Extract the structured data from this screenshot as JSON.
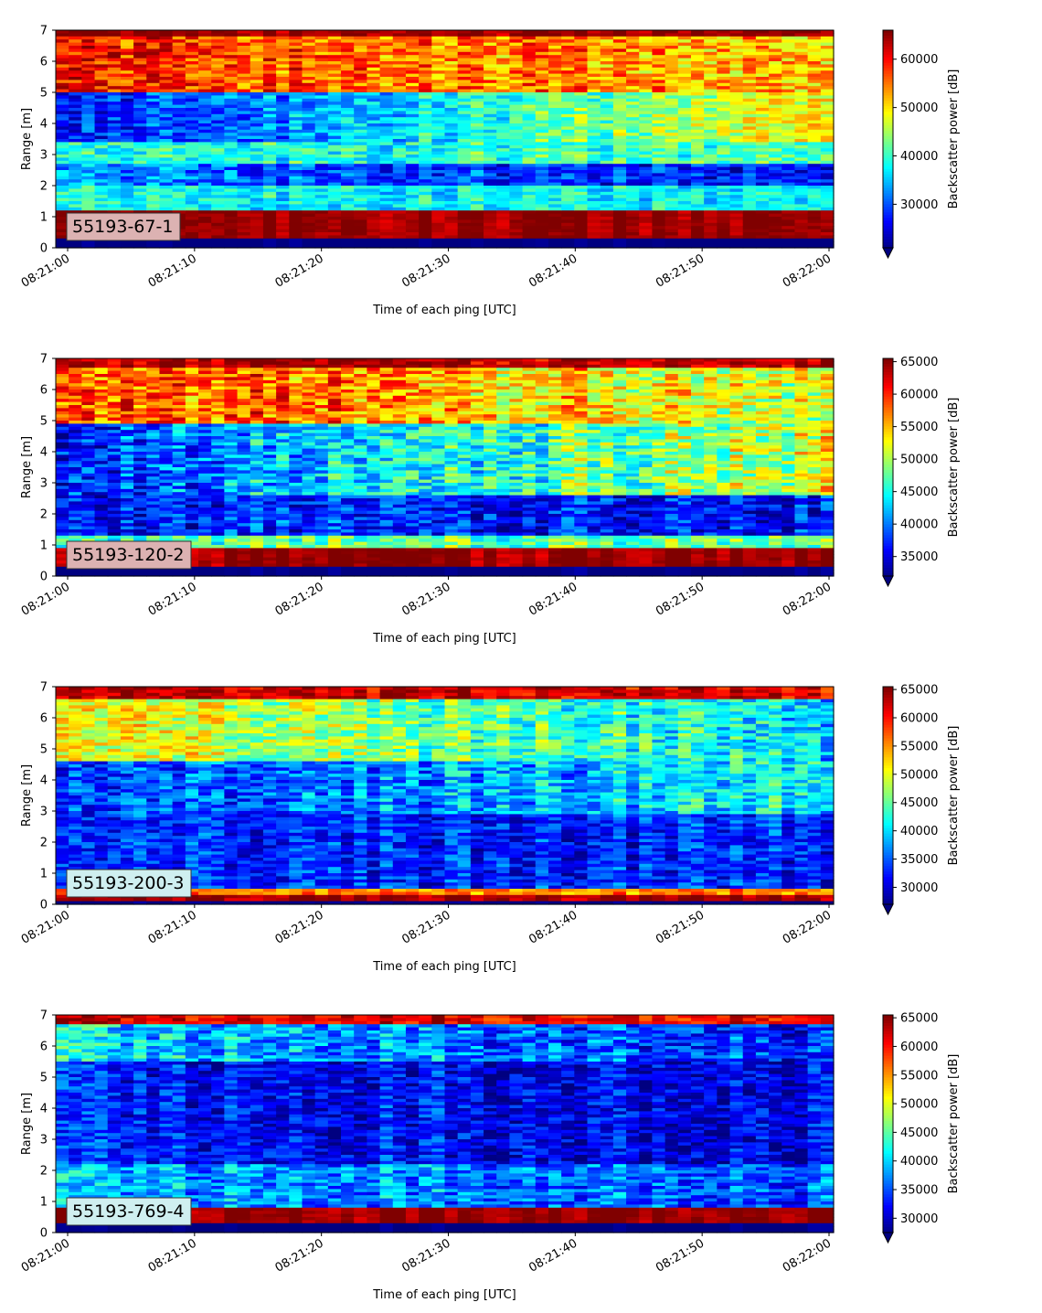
{
  "chart_data": [
    {
      "type": "heatmap",
      "panel_label": "55193-67-1",
      "xlabel": "Time of each ping [UTC]",
      "ylabel": "Range [m]",
      "colorbar_label": "Backscatter power [dB]",
      "x_ticks": [
        "08:21:00",
        "08:21:10",
        "08:21:20",
        "08:21:30",
        "08:21:40",
        "08:21:50",
        "08:22:00"
      ],
      "y_ticks": [
        0,
        1,
        2,
        3,
        4,
        5,
        6,
        7
      ],
      "ylim": [
        0,
        7
      ],
      "colorbar_ticks": [
        30000,
        40000,
        50000,
        60000
      ],
      "clim": [
        21000,
        66000
      ],
      "colormap": "jet",
      "layers": [
        {
          "top": 7.0,
          "bottom": 6.75,
          "start": 65000,
          "end": 65000,
          "var": 2000
        },
        {
          "top": 6.75,
          "bottom": 5.0,
          "start": 59000,
          "end": 52000,
          "var": 6000
        },
        {
          "top": 5.0,
          "bottom": 3.4,
          "start": 26000,
          "end": 50000,
          "var": 5000
        },
        {
          "top": 3.4,
          "bottom": 2.7,
          "start": 38000,
          "end": 42000,
          "var": 5000
        },
        {
          "top": 2.7,
          "bottom": 2.0,
          "start": 32000,
          "end": 27000,
          "var": 5000
        },
        {
          "top": 2.0,
          "bottom": 1.2,
          "start": 38000,
          "end": 38000,
          "var": 4000
        },
        {
          "top": 1.2,
          "bottom": 0.25,
          "start": 65000,
          "end": 65000,
          "var": 1500
        }
      ]
    },
    {
      "type": "heatmap",
      "panel_label": "55193-120-2",
      "xlabel": "Time of each ping [UTC]",
      "ylabel": "Range [m]",
      "colorbar_label": "Backscatter power [dB]",
      "x_ticks": [
        "08:21:00",
        "08:21:10",
        "08:21:20",
        "08:21:30",
        "08:21:40",
        "08:21:50",
        "08:22:00"
      ],
      "y_ticks": [
        0,
        1,
        2,
        3,
        4,
        5,
        6,
        7
      ],
      "ylim": [
        0,
        7
      ],
      "colorbar_ticks": [
        35000,
        40000,
        45000,
        50000,
        55000,
        60000,
        65000
      ],
      "clim": [
        32000,
        65500
      ],
      "colormap": "jet",
      "layers": [
        {
          "top": 7.0,
          "bottom": 6.7,
          "start": 65000,
          "end": 63000,
          "var": 2500
        },
        {
          "top": 6.7,
          "bottom": 4.9,
          "start": 60000,
          "end": 51000,
          "var": 5000
        },
        {
          "top": 4.9,
          "bottom": 2.6,
          "start": 38000,
          "end": 52000,
          "var": 5000
        },
        {
          "top": 2.6,
          "bottom": 1.3,
          "start": 38000,
          "end": 36000,
          "var": 4000
        },
        {
          "top": 1.3,
          "bottom": 0.85,
          "start": 48000,
          "end": 48000,
          "var": 4000
        },
        {
          "top": 0.85,
          "bottom": 0.25,
          "start": 65000,
          "end": 65000,
          "var": 1000
        }
      ]
    },
    {
      "type": "heatmap",
      "panel_label": "55193-200-3",
      "xlabel": "Time of each ping [UTC]",
      "ylabel": "Range [m]",
      "colorbar_label": "Backscatter power [dB]",
      "x_ticks": [
        "08:21:00",
        "08:21:10",
        "08:21:20",
        "08:21:30",
        "08:21:40",
        "08:21:50",
        "08:22:00"
      ],
      "y_ticks": [
        0,
        1,
        2,
        3,
        4,
        5,
        6,
        7
      ],
      "ylim": [
        0,
        7
      ],
      "colorbar_ticks": [
        30000,
        35000,
        40000,
        45000,
        50000,
        55000,
        60000,
        65000
      ],
      "clim": [
        27000,
        65500
      ],
      "colormap": "jet",
      "layers": [
        {
          "top": 7.0,
          "bottom": 6.6,
          "start": 63000,
          "end": 62000,
          "var": 3000
        },
        {
          "top": 6.6,
          "bottom": 4.6,
          "start": 51000,
          "end": 40000,
          "var": 5000
        },
        {
          "top": 4.6,
          "bottom": 2.9,
          "start": 33000,
          "end": 42000,
          "var": 5000
        },
        {
          "top": 2.9,
          "bottom": 0.5,
          "start": 33000,
          "end": 33000,
          "var": 4000
        },
        {
          "top": 0.5,
          "bottom": 0.3,
          "start": 56000,
          "end": 56000,
          "var": 3000
        },
        {
          "top": 0.3,
          "bottom": 0.1,
          "start": 64000,
          "end": 64000,
          "var": 1500
        }
      ]
    },
    {
      "type": "heatmap",
      "panel_label": "55193-769-4",
      "xlabel": "Time of each ping [UTC]",
      "ylabel": "Range [m]",
      "colorbar_label": "Backscatter power [dB]",
      "x_ticks": [
        "08:21:00",
        "08:21:10",
        "08:21:20",
        "08:21:30",
        "08:21:40",
        "08:21:50",
        "08:22:00"
      ],
      "y_ticks": [
        0,
        1,
        2,
        3,
        4,
        5,
        6,
        7
      ],
      "ylim": [
        0,
        7
      ],
      "colorbar_ticks": [
        30000,
        35000,
        40000,
        45000,
        50000,
        55000,
        60000,
        65000
      ],
      "clim": [
        27500,
        65500
      ],
      "colormap": "jet",
      "layers": [
        {
          "top": 7.0,
          "bottom": 6.7,
          "start": 63000,
          "end": 60000,
          "var": 3000
        },
        {
          "top": 6.7,
          "bottom": 5.5,
          "start": 41000,
          "end": 33000,
          "var": 5000
        },
        {
          "top": 5.5,
          "bottom": 2.2,
          "start": 33000,
          "end": 31000,
          "var": 4000
        },
        {
          "top": 2.2,
          "bottom": 0.75,
          "start": 39000,
          "end": 35000,
          "var": 4500
        },
        {
          "top": 0.75,
          "bottom": 0.25,
          "start": 65000,
          "end": 65000,
          "var": 1000
        }
      ]
    }
  ]
}
